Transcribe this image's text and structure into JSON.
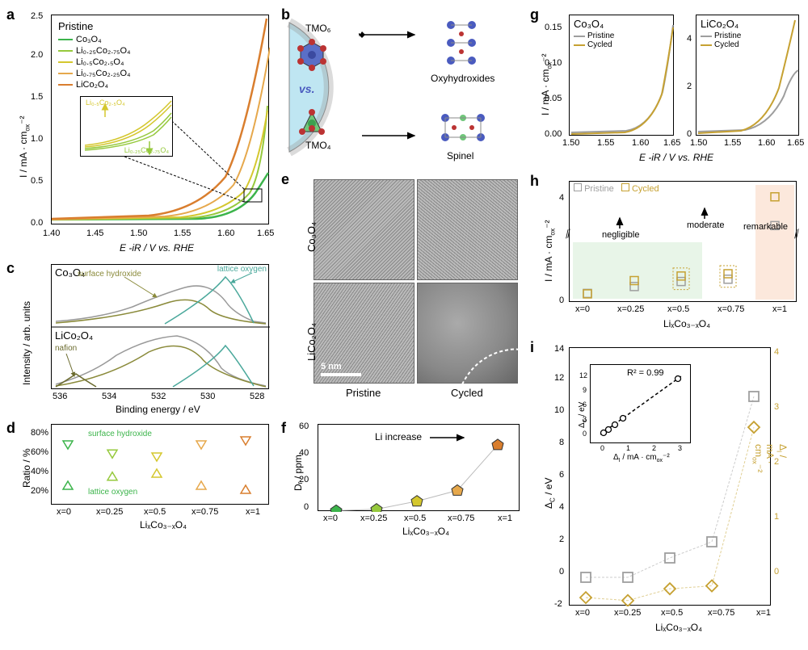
{
  "colors": {
    "series": [
      "#3cb44b",
      "#96c93d",
      "#d4c72e",
      "#e6a84c",
      "#d97e2e"
    ],
    "grid": "#e0e0e0",
    "pristine": "#9e9e9e",
    "cycled": "#c6a132",
    "teal": "#4aa89b",
    "olive": "#8a8a3a",
    "blue": "#4a5bbf",
    "green_marker": "#3cb44b"
  },
  "panel_a": {
    "label": "a",
    "legend_title": "Pristine",
    "series": [
      {
        "name": "Co₃O₄",
        "color": "#3cb44b"
      },
      {
        "name": "Li₀.₂₅Co₂.₇₅O₄",
        "color": "#96c93d"
      },
      {
        "name": "Li₀.₅Co₂.₅O₄",
        "color": "#d4c72e"
      },
      {
        "name": "Li₀.₇₅Co₂.₂₅O₄",
        "color": "#e6a84c"
      },
      {
        "name": "LiCo₂O₄",
        "color": "#d97e2e"
      }
    ],
    "xlabel": "E -iR / V vs. RHE",
    "ylabel": "I / mA · cm⁻²ₒₓ",
    "xlim": [
      1.4,
      1.65
    ],
    "xticks": [
      1.4,
      1.45,
      1.5,
      1.55,
      1.6,
      1.65
    ],
    "ylim": [
      0,
      2.5
    ],
    "yticks": [
      0.0,
      0.5,
      1.0,
      1.5,
      2.0,
      2.5
    ],
    "inset_labels": {
      "up": "Li₀.₅Co₂.₅O₄",
      "down": "Li₀.₂₅Co₂.₇₅O₄"
    }
  },
  "panel_b": {
    "label": "b",
    "tmo6": "TMO₆",
    "tmo4": "TMO₄",
    "vs": "vs.",
    "right_top": "Oxyhydroxides",
    "right_bottom": "Spinel"
  },
  "panel_c": {
    "label": "c",
    "top": "Co₃O₄",
    "bottom": "LiCo₂O₄",
    "peaks": {
      "surface_hydroxide": "surface hydroxide",
      "lattice_oxygen": "lattice oxygen",
      "nafion": "nafion"
    },
    "xlabel": "Binding energy / eV",
    "ylabel": "Intensity / arb. units",
    "xticks": [
      536,
      534,
      532,
      530,
      528
    ]
  },
  "panel_d": {
    "label": "d",
    "ylabel": "Ratio / %",
    "yticks": [
      20,
      40,
      60,
      80
    ],
    "xlabel": "LiₓCo₃₋ₓO₄",
    "xticks": [
      "x=0",
      "x=0.25",
      "x=0.5",
      "x=0.75",
      "x=1"
    ],
    "annotations": {
      "surface_hydroxide": "surface hydroxide",
      "lattice_oxygen": "lattice oxygen"
    },
    "data_top": [
      70,
      61,
      58,
      70,
      74
    ],
    "data_bottom": [
      30,
      39,
      42,
      30,
      26
    ]
  },
  "panel_e": {
    "label": "e",
    "rows": [
      "Co₃O₄",
      "LiCo₂O₄"
    ],
    "cols": [
      "Pristine",
      "Cycled"
    ],
    "scalebar": "5 nm"
  },
  "panel_f": {
    "label": "f",
    "ylabel": "Dᵣ / ppm",
    "yticks": [
      0,
      20,
      40,
      60
    ],
    "xlabel": "LiₓCo₃₋ₓO₄",
    "xticks": [
      "x=0",
      "x=0.25",
      "x=0.5",
      "x=0.75",
      "x=1"
    ],
    "annotation": "Li increase",
    "data": [
      1,
      2,
      8,
      16,
      50
    ]
  },
  "panel_g": {
    "label": "g",
    "left_title": "Co₃O₄",
    "right_title": "LiCo₂O₄",
    "legend": {
      "pristine": "Pristine",
      "cycled": "Cycled"
    },
    "xlabel": "E -iR / V vs. RHE",
    "ylabel": "I / mA · cm⁻²ₒₓ",
    "left_xticks": [
      1.5,
      1.55,
      1.6,
      1.65
    ],
    "left_ylim": [
      0,
      0.17
    ],
    "left_yticks": [
      0.0,
      0.05,
      0.1,
      0.15
    ],
    "right_xticks": [
      1.5,
      1.55,
      1.6,
      1.65
    ],
    "right_yticks": [
      0,
      2,
      4
    ]
  },
  "panel_h": {
    "label": "h",
    "ylabel": "I / mA · cm⁻²ₒₓ",
    "xlabel": "LiₓCo₃₋ₓO₄",
    "xticks": [
      "x=0",
      "x=0.25",
      "x=0.5",
      "x=0.75",
      "x=1"
    ],
    "legend": {
      "pristine": "Pristine",
      "cycled": "Cycled"
    },
    "annotations": {
      "negligible": "negligible",
      "moderate": "moderate",
      "remarkable": "remarkable"
    },
    "yticks": [
      0,
      4
    ],
    "data_pristine": [
      0.17,
      0.32,
      0.43,
      0.48,
      2.45
    ],
    "data_cycled": [
      0.16,
      0.45,
      0.55,
      0.6,
      5.3
    ]
  },
  "panel_i": {
    "label": "i",
    "ylabel_left": "Δc / eV",
    "ylabel_right": "Δᵢ / mA · cm⁻²ₒₓ",
    "xlabel": "LiₓCo₃₋ₓO₄",
    "xticks": [
      "x=0",
      "x=0.25",
      "x=0.5",
      "x=0.75",
      "x=1"
    ],
    "yticks_left": [
      -2,
      0,
      2,
      4,
      6,
      8,
      10,
      12,
      14
    ],
    "yticks_right": [
      0,
      1,
      2,
      3,
      4
    ],
    "data_left": [
      -0.2,
      -0.2,
      1.0,
      2.0,
      11.0
    ],
    "data_right": [
      -0.05,
      -0.1,
      0.1,
      0.15,
      2.85
    ],
    "inset": {
      "r2": "R² = 0.99",
      "ylabel": "Δc / eV",
      "xlabel": "Δᵢ / mA · cm⁻²ₒₓ",
      "yticks": [
        0,
        3,
        6,
        9,
        12
      ],
      "xticks": [
        0,
        1,
        2,
        3
      ]
    }
  }
}
